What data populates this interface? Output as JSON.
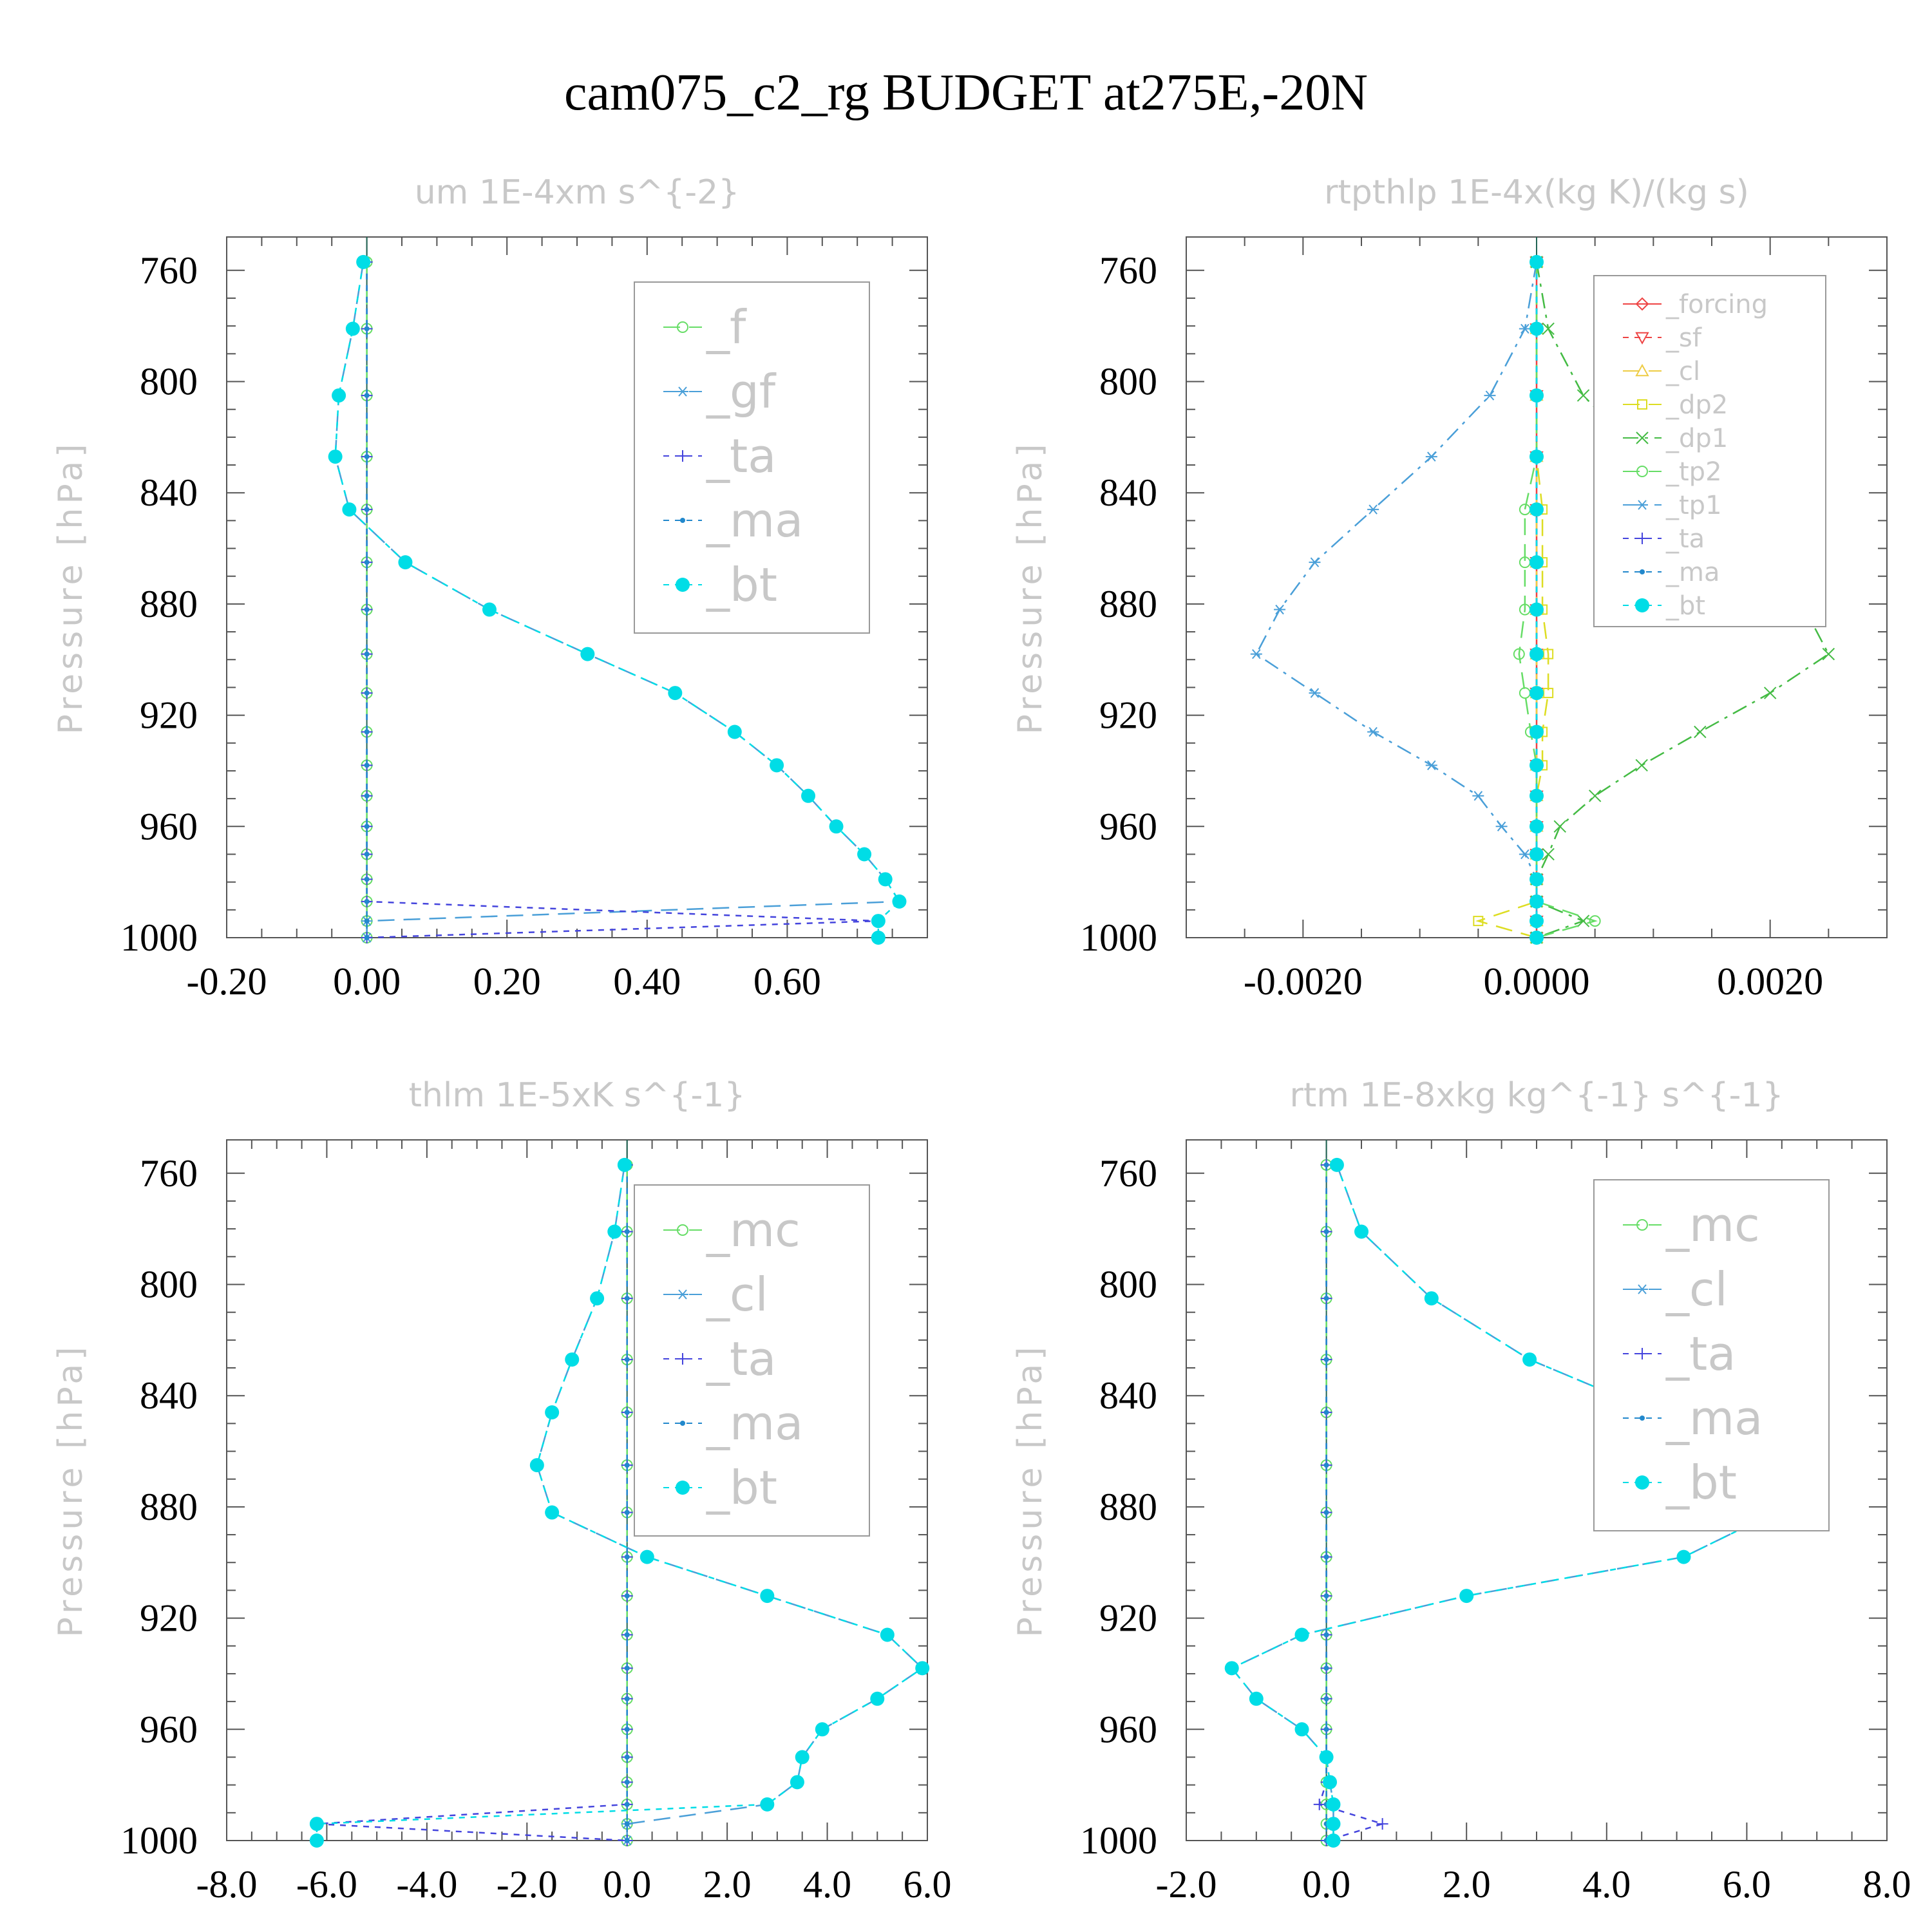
{
  "figure": {
    "title": "cam075_c2_rg  BUDGET at275E,-20N"
  },
  "chart_data": [
    {
      "type": "line",
      "title": "um   1E-4xm s^{-2}",
      "ylabel": "Pressure [hPa]",
      "xlabel": "",
      "xlim": [
        -0.2,
        0.8
      ],
      "ylim": [
        1000,
        748
      ],
      "x_ticks": [
        -0.2,
        0.0,
        0.2,
        0.4,
        0.6
      ],
      "x_tick_labels": [
        "-0.20",
        "0.00",
        "0.20",
        "0.40",
        "0.60"
      ],
      "y_ticks": [
        760,
        800,
        840,
        880,
        920,
        960,
        1000
      ],
      "y_tick_labels": [
        "760",
        "800",
        "840",
        "880",
        "920",
        "960",
        "1000"
      ],
      "legend": "top-right",
      "pressure": [
        757,
        781,
        805,
        827,
        846,
        865,
        882,
        898,
        912,
        926,
        938,
        949,
        960,
        970,
        979,
        987,
        994,
        1000
      ],
      "series": [
        {
          "name": "_f",
          "color": "#66dd66",
          "marker": "circle",
          "dash": "long",
          "values": [
            0,
            0,
            0,
            0,
            0,
            0,
            0,
            0,
            0,
            0,
            0,
            0,
            0,
            0,
            0,
            0,
            0,
            0
          ]
        },
        {
          "name": "_gf",
          "color": "#4a9fd8",
          "marker": "star",
          "dash": "long",
          "values": [
            -0.005,
            -0.02,
            -0.04,
            -0.045,
            -0.025,
            0.055,
            0.175,
            0.315,
            0.44,
            0.525,
            0.585,
            0.63,
            0.67,
            0.71,
            0.74,
            0.76,
            0.0,
            0.0
          ]
        },
        {
          "name": "_ta",
          "color": "#4444dd",
          "marker": "plus",
          "dash": "short",
          "values": [
            0,
            0,
            0,
            0,
            0,
            0,
            0,
            0,
            0,
            0,
            0,
            0,
            0,
            0,
            0,
            0,
            0.73,
            0.0
          ]
        },
        {
          "name": "_ma",
          "color": "#2288cc",
          "marker": "dot",
          "dash": "short",
          "values": [
            0,
            0,
            0,
            0,
            0,
            0,
            0,
            0,
            0,
            0,
            0,
            0,
            0,
            0,
            0,
            0,
            0,
            0
          ]
        },
        {
          "name": "_bt",
          "color": "#00dde6",
          "marker": "bigdot",
          "dash": "short",
          "values": [
            -0.005,
            -0.02,
            -0.04,
            -0.045,
            -0.025,
            0.055,
            0.175,
            0.315,
            0.44,
            0.525,
            0.585,
            0.63,
            0.67,
            0.71,
            0.74,
            0.76,
            0.73,
            0.73
          ]
        }
      ]
    },
    {
      "type": "line",
      "title": "rtpthlp   1E-4x(kg K)/(kg s)",
      "ylabel": "Pressure [hPa]",
      "xlabel": "",
      "xlim": [
        -0.003,
        0.003
      ],
      "ylim": [
        1000,
        748
      ],
      "x_ticks": [
        -0.002,
        0.0,
        0.002
      ],
      "x_tick_labels": [
        "-0.0020",
        "0.0000",
        "0.0020"
      ],
      "y_ticks": [
        760,
        800,
        840,
        880,
        920,
        960,
        1000
      ],
      "y_tick_labels": [
        "760",
        "800",
        "840",
        "880",
        "920",
        "960",
        "1000"
      ],
      "legend": "top-right",
      "pressure": [
        757,
        781,
        805,
        827,
        846,
        865,
        882,
        898,
        912,
        926,
        938,
        949,
        960,
        970,
        979,
        987,
        994,
        1000
      ],
      "series": [
        {
          "name": "_forcing",
          "color": "#ee4444",
          "marker": "diamond",
          "dash": "solid",
          "values": [
            0,
            0,
            0,
            0,
            0,
            0,
            0,
            0,
            0,
            0,
            0,
            0,
            0,
            0,
            0,
            0,
            0,
            0
          ]
        },
        {
          "name": "_sf",
          "color": "#ee4444",
          "marker": "tri-down",
          "dash": "short",
          "values": [
            0,
            0,
            0,
            0,
            0,
            0,
            0,
            0,
            0,
            0,
            0,
            0,
            0,
            0,
            0,
            0,
            0,
            0
          ]
        },
        {
          "name": "_cl",
          "color": "#eecc44",
          "marker": "tri-up",
          "dash": "long",
          "values": [
            0,
            0,
            0,
            0,
            0,
            0,
            0,
            0,
            0,
            0,
            0,
            0,
            0,
            0,
            0,
            0,
            0,
            0
          ]
        },
        {
          "name": "_dp2",
          "color": "#dddd22",
          "marker": "square",
          "dash": "long",
          "values": [
            0,
            0,
            0,
            0,
            5e-05,
            5e-05,
            5e-05,
            0.0001,
            0.0001,
            5e-05,
            5e-05,
            0,
            0,
            0,
            0,
            0,
            -0.0005,
            0
          ]
        },
        {
          "name": "_dp1",
          "color": "#44bb44",
          "marker": "x",
          "dash": "dashdot",
          "values": [
            0,
            0.0001,
            0.0004,
            0.0009,
            0.0014,
            0.0018,
            0.0023,
            0.0025,
            0.002,
            0.0014,
            0.0009,
            0.0005,
            0.0002,
            0.0001,
            0,
            0,
            0.0004,
            0
          ]
        },
        {
          "name": "_tp2",
          "color": "#66dd66",
          "marker": "circle",
          "dash": "long",
          "values": [
            0,
            0,
            0,
            0,
            -0.0001,
            -0.0001,
            -0.0001,
            -0.00015,
            -0.0001,
            -5e-05,
            0,
            0,
            0,
            0,
            0,
            0,
            0.0005,
            0
          ]
        },
        {
          "name": "_tp1",
          "color": "#4a9fd8",
          "marker": "star",
          "dash": "dashdot",
          "values": [
            0,
            -0.0001,
            -0.0004,
            -0.0009,
            -0.0014,
            -0.0019,
            -0.0022,
            -0.0024,
            -0.0019,
            -0.0014,
            -0.0009,
            -0.0005,
            -0.0003,
            -0.0001,
            0,
            0,
            0,
            0
          ]
        },
        {
          "name": "_ta",
          "color": "#4444dd",
          "marker": "plus",
          "dash": "short",
          "values": [
            0,
            0,
            0,
            0,
            0,
            0,
            0,
            0,
            0,
            0,
            0,
            0,
            0,
            0,
            0,
            0,
            0,
            0
          ]
        },
        {
          "name": "_ma",
          "color": "#2288cc",
          "marker": "dot",
          "dash": "short",
          "values": [
            0,
            0,
            0,
            0,
            0,
            0,
            0,
            0,
            0,
            0,
            0,
            0,
            0,
            0,
            0,
            0,
            0,
            0
          ]
        },
        {
          "name": "_bt",
          "color": "#00dde6",
          "marker": "bigdot",
          "dash": "short",
          "values": [
            0,
            0,
            0,
            0,
            0,
            0,
            0,
            0,
            0,
            0,
            0,
            0,
            0,
            0,
            0,
            0,
            0,
            0
          ]
        }
      ]
    },
    {
      "type": "line",
      "title": "thlm   1E-5xK s^{-1}",
      "ylabel": "Pressure [hPa]",
      "xlabel": "",
      "xlim": [
        -8.0,
        6.0
      ],
      "ylim": [
        1000,
        748
      ],
      "x_ticks": [
        -8,
        -6,
        -4,
        -2,
        0,
        2,
        4,
        6
      ],
      "x_tick_labels": [
        "-8.0",
        "-6.0",
        "-4.0",
        "-2.0",
        "0.0",
        "2.0",
        "4.0",
        "6.0"
      ],
      "y_ticks": [
        760,
        800,
        840,
        880,
        920,
        960,
        1000
      ],
      "y_tick_labels": [
        "760",
        "800",
        "840",
        "880",
        "920",
        "960",
        "1000"
      ],
      "legend": "top-right",
      "pressure": [
        757,
        781,
        805,
        827,
        846,
        865,
        882,
        898,
        912,
        926,
        938,
        949,
        960,
        970,
        979,
        987,
        994,
        1000
      ],
      "series": [
        {
          "name": "_mc",
          "color": "#66dd66",
          "marker": "circle",
          "dash": "long",
          "values": [
            0,
            0,
            0,
            0,
            0,
            0,
            0,
            0,
            0,
            0,
            0,
            0,
            0,
            0,
            0,
            0,
            0,
            0
          ]
        },
        {
          "name": "_cl",
          "color": "#4a9fd8",
          "marker": "star",
          "dash": "long",
          "values": [
            -0.05,
            -0.25,
            -0.6,
            -1.1,
            -1.5,
            -1.8,
            -1.5,
            0.4,
            2.8,
            5.2,
            5.9,
            5.0,
            3.9,
            3.5,
            3.4,
            2.8,
            0,
            0
          ]
        },
        {
          "name": "_ta",
          "color": "#4444dd",
          "marker": "plus",
          "dash": "short",
          "values": [
            0,
            0,
            0,
            0,
            0,
            0,
            0,
            0,
            0,
            0,
            0,
            0,
            0,
            0,
            0,
            0,
            -6.2,
            0
          ]
        },
        {
          "name": "_ma",
          "color": "#2288cc",
          "marker": "dot",
          "dash": "short",
          "values": [
            0,
            0,
            0,
            0,
            0,
            0,
            0,
            0,
            0,
            0,
            0,
            0,
            0,
            0,
            0,
            0,
            0,
            0
          ]
        },
        {
          "name": "_bt",
          "color": "#00dde6",
          "marker": "bigdot",
          "dash": "short",
          "values": [
            -0.05,
            -0.25,
            -0.6,
            -1.1,
            -1.5,
            -1.8,
            -1.5,
            0.4,
            2.8,
            5.2,
            5.9,
            5.0,
            3.9,
            3.5,
            3.4,
            2.8,
            -6.2,
            -6.2
          ]
        }
      ]
    },
    {
      "type": "line",
      "title": "rtm   1E-8xkg kg^{-1} s^{-1}",
      "ylabel": "Pressure [hPa]",
      "xlabel": "",
      "xlim": [
        -2.0,
        8.0
      ],
      "ylim": [
        1000,
        748
      ],
      "x_ticks": [
        -2,
        0,
        2,
        4,
        6,
        8
      ],
      "x_tick_labels": [
        "-2.0",
        "0.0",
        "2.0",
        "4.0",
        "6.0",
        "8.0"
      ],
      "y_ticks": [
        760,
        800,
        840,
        880,
        920,
        960,
        1000
      ],
      "y_tick_labels": [
        "760",
        "800",
        "840",
        "880",
        "920",
        "960",
        "1000"
      ],
      "legend": "top-right",
      "pressure": [
        757,
        781,
        805,
        827,
        846,
        865,
        882,
        898,
        912,
        926,
        938,
        949,
        960,
        970,
        979,
        987,
        994,
        1000
      ],
      "series": [
        {
          "name": "_mc",
          "color": "#66dd66",
          "marker": "circle",
          "dash": "long",
          "values": [
            0,
            0,
            0,
            0,
            0,
            0,
            0,
            0,
            0,
            0,
            0,
            0,
            0,
            0,
            0,
            0,
            0,
            0
          ]
        },
        {
          "name": "_cl",
          "color": "#4a9fd8",
          "marker": "star",
          "dash": "long",
          "values": [
            0.15,
            0.5,
            1.5,
            2.9,
            4.7,
            6.35,
            6.4,
            5.1,
            2.0,
            -0.35,
            -1.35,
            -1.0,
            -0.35,
            0,
            0.05,
            0.1,
            0.1,
            0.1
          ]
        },
        {
          "name": "_ta",
          "color": "#4444dd",
          "marker": "plus",
          "dash": "short",
          "values": [
            0,
            0,
            0,
            0,
            0,
            0,
            0,
            0,
            0,
            0,
            0,
            0,
            0,
            0,
            0,
            -0.1,
            0.8,
            0
          ]
        },
        {
          "name": "_ma",
          "color": "#2288cc",
          "marker": "dot",
          "dash": "short",
          "values": [
            0,
            0,
            0,
            0,
            0,
            0,
            0,
            0,
            0,
            0,
            0,
            0,
            0,
            0,
            0,
            0,
            0,
            0
          ]
        },
        {
          "name": "_bt",
          "color": "#00dde6",
          "marker": "bigdot",
          "dash": "short",
          "values": [
            0.15,
            0.5,
            1.5,
            2.9,
            4.7,
            6.35,
            6.4,
            5.1,
            2.0,
            -0.35,
            -1.35,
            -1.0,
            -0.35,
            0,
            0.05,
            0.1,
            0.1,
            0.1
          ]
        }
      ]
    }
  ]
}
